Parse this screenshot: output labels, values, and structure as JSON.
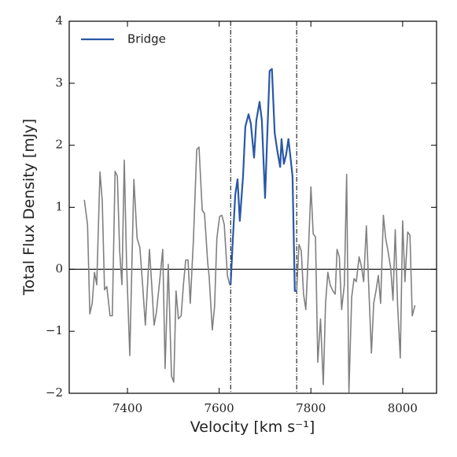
{
  "chart_data": {
    "type": "line",
    "xlabel": "Velocity [km s⁻¹]",
    "ylabel": "Total Flux Density [mJy]",
    "xlim": [
      7273,
      8074
    ],
    "ylim": [
      -2,
      4
    ],
    "xticks": [
      7400,
      7600,
      7800,
      8000
    ],
    "yticks": [
      {
        "value": -2,
        "label": "−2"
      },
      {
        "value": -1,
        "label": "−1"
      },
      0,
      1,
      2,
      3,
      4
    ],
    "vlines": [
      7625,
      7769
    ],
    "hlines": [
      0
    ],
    "legend": "upper left",
    "series": [
      {
        "color": "#808080",
        "x": [
          7306,
          7313,
          7318,
          7323,
          7328,
          7333,
          7340,
          7345,
          7350,
          7355,
          7362,
          7367,
          7373,
          7378,
          7383,
          7388,
          7393,
          7398,
          7405,
          7414,
          7421,
          7427,
          7433,
          7439,
          7448,
          7453,
          7458,
          7463,
          7470,
          7477,
          7482,
          7489,
          7496,
          7501,
          7506,
          7511,
          7517,
          7522,
          7527,
          7532,
          7537,
          7544,
          7551,
          7556,
          7563,
          7568,
          7575,
          7578,
          7585,
          7590,
          7595,
          7601,
          7606,
          7611,
          7618,
          7623,
          7625,
          7630,
          7635,
          7640,
          7645,
          7652,
          7657,
          7664,
          7669,
          7676,
          7681,
          7688,
          7693,
          7700,
          7705,
          7710,
          7715,
          7721,
          7727,
          7733,
          7736,
          7741,
          7746,
          7751,
          7757,
          7760,
          7765,
          7769,
          7774,
          7779,
          7784,
          7789,
          7795,
          7800,
          7805,
          7810,
          7815,
          7821,
          7827,
          7832,
          7837,
          7842,
          7848,
          7853,
          7857,
          7862,
          7867,
          7873,
          7878,
          7883,
          7889,
          7894,
          7899,
          7905,
          7910,
          7915,
          7921,
          7926,
          7932,
          7937,
          7942,
          7947,
          7952,
          7958,
          7963,
          7968,
          7974,
          7979,
          7984,
          7989,
          7995,
          8000,
          8005,
          8011,
          8016,
          8021,
          8027
        ],
        "values": [
          1.12,
          0.72,
          -0.72,
          -0.55,
          -0.05,
          -0.25,
          1.57,
          1.1,
          -0.33,
          -0.28,
          -0.75,
          -0.75,
          1.58,
          1.5,
          0.3,
          -0.25,
          1.76,
          0.1,
          -1.39,
          1.45,
          0.5,
          0.35,
          -0.25,
          -0.9,
          0.32,
          -0.25,
          -0.9,
          -0.7,
          -0.2,
          0.32,
          -1.6,
          0.08,
          -1.72,
          -1.82,
          -0.35,
          -0.8,
          -0.75,
          -0.25,
          0.15,
          0.15,
          -0.55,
          0.5,
          1.93,
          1.97,
          0.95,
          0.9,
          0.1,
          -0.1,
          -0.98,
          -0.6,
          0.5,
          0.85,
          0.87,
          0.72,
          -0.1,
          -0.25,
          -0.25,
          0.5,
          1.2,
          1.45,
          0.78,
          1.5,
          2.3,
          2.5,
          2.35,
          1.8,
          2.4,
          2.7,
          2.4,
          1.15,
          2.2,
          3.2,
          3.23,
          2.2,
          1.9,
          1.65,
          2.1,
          1.7,
          1.85,
          2.1,
          1.7,
          1.5,
          -0.35,
          -0.35,
          0.4,
          0.3,
          -0.4,
          -0.65,
          0.35,
          1.33,
          0.57,
          0.52,
          -1.5,
          -0.8,
          -1.86,
          -0.55,
          -0.05,
          -0.25,
          -0.35,
          -0.4,
          0.32,
          0.2,
          -0.65,
          -0.25,
          1.53,
          -1.98,
          -0.45,
          -0.15,
          -0.2,
          0.2,
          0.05,
          -0.2,
          0.7,
          -0.25,
          -1.35,
          -0.55,
          -0.35,
          -0.1,
          -0.55,
          0.87,
          0.5,
          0.3,
          0.02,
          -0.5,
          0.64,
          -0.55,
          -1.43,
          0.78,
          -0.2,
          0.6,
          0.55,
          -0.75,
          -0.58
        ]
      },
      {
        "name": "Bridge",
        "color": "#2958a8",
        "x": [
          7625,
          7630,
          7635,
          7640,
          7645,
          7652,
          7657,
          7664,
          7669,
          7676,
          7681,
          7688,
          7693,
          7700,
          7705,
          7710,
          7715,
          7721,
          7727,
          7733,
          7736,
          7741,
          7746,
          7751,
          7757,
          7760,
          7765,
          7769
        ],
        "values": [
          -0.25,
          0.5,
          1.2,
          1.45,
          0.78,
          1.5,
          2.3,
          2.5,
          2.35,
          1.8,
          2.4,
          2.7,
          2.4,
          1.15,
          2.2,
          3.2,
          3.23,
          2.2,
          1.9,
          1.65,
          2.1,
          1.7,
          1.85,
          2.1,
          1.7,
          1.5,
          -0.35,
          -0.35
        ]
      }
    ]
  }
}
